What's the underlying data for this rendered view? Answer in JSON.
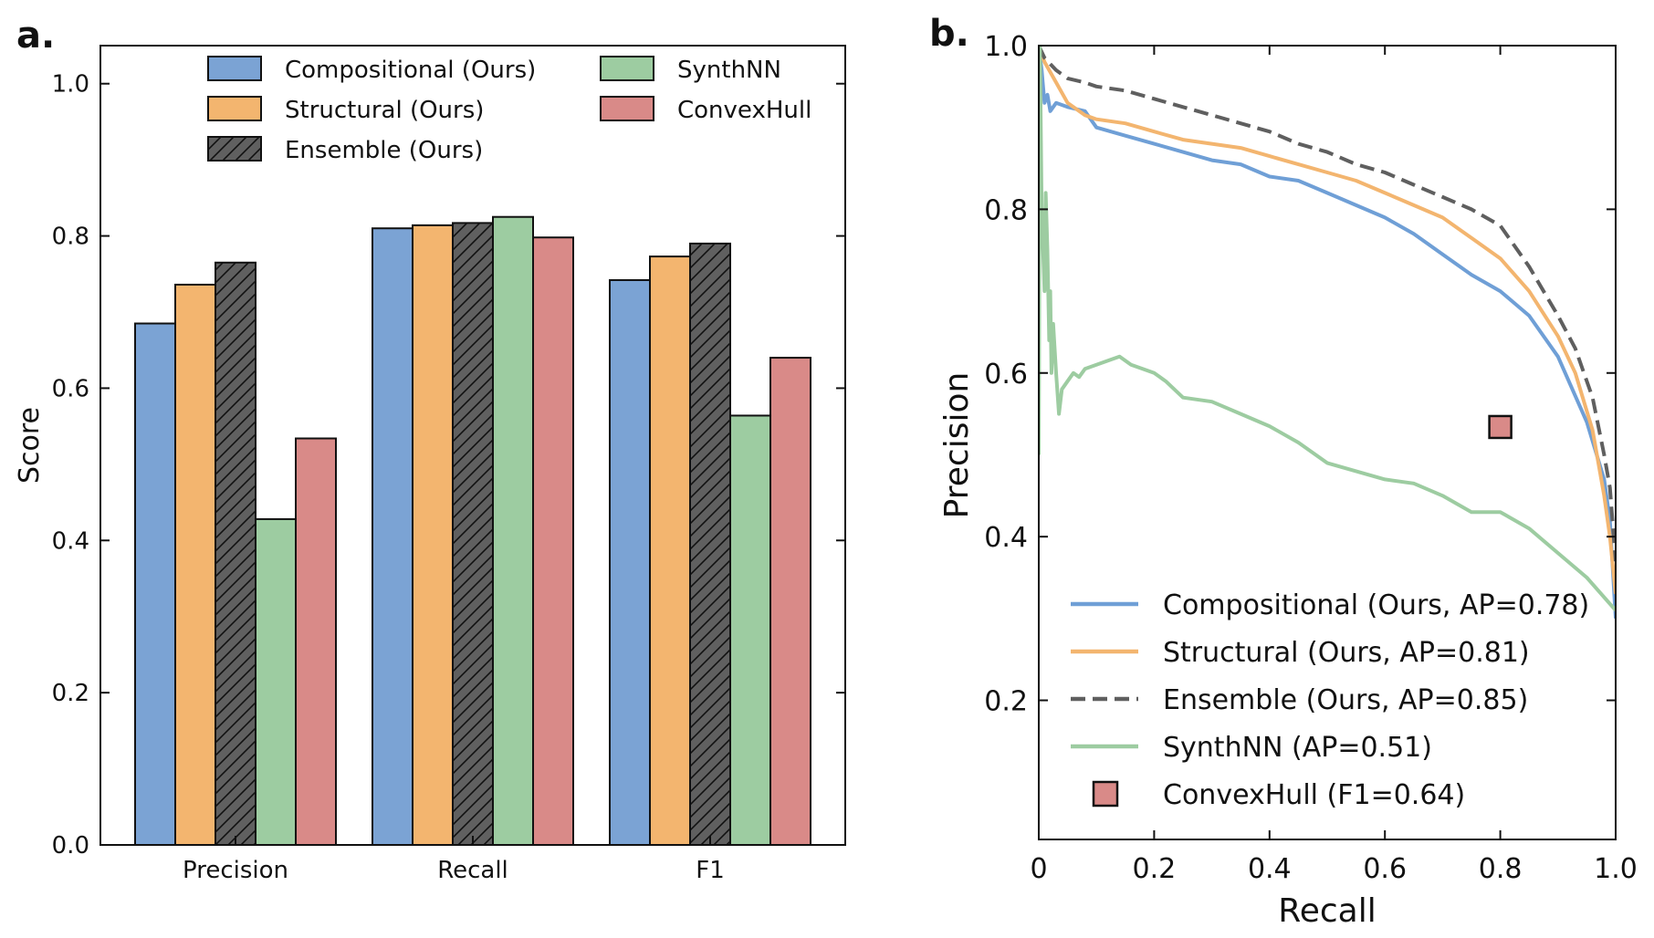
{
  "panel_labels": {
    "a": "a.",
    "b": "b."
  },
  "chart_data": [
    {
      "type": "bar",
      "panel": "a.",
      "categories": [
        "Precision",
        "Recall",
        "F1"
      ],
      "ylabel": "Score",
      "xlabel": "",
      "ylim": [
        0.0,
        1.05
      ],
      "yticks": [
        "0.0",
        "0.2",
        "0.4",
        "0.6",
        "0.8",
        "1.0"
      ],
      "legend_position": "top",
      "series": [
        {
          "name": "Compositional (Ours)",
          "color": "#7ba3d4",
          "hatch": false,
          "values": [
            0.685,
            0.81,
            0.742
          ]
        },
        {
          "name": "Structural (Ours)",
          "color": "#f3b56f",
          "hatch": false,
          "values": [
            0.736,
            0.814,
            0.773
          ]
        },
        {
          "name": "Ensemble (Ours)",
          "color": "#606060",
          "hatch": true,
          "values": [
            0.765,
            0.817,
            0.79
          ]
        },
        {
          "name": "SynthNN",
          "color": "#9dcca1",
          "hatch": false,
          "values": [
            0.428,
            0.825,
            0.564
          ]
        },
        {
          "name": "ConvexHull",
          "color": "#d98a88",
          "hatch": false,
          "values": [
            0.534,
            0.798,
            0.64
          ]
        }
      ]
    },
    {
      "type": "line",
      "panel": "b.",
      "xlabel": "Recall",
      "ylabel": "Precision",
      "xlim": [
        0.0,
        1.0
      ],
      "ylim": [
        0.03,
        1.0
      ],
      "xticks": [
        "0",
        "0.2",
        "0.4",
        "0.6",
        "0.8",
        "1.0"
      ],
      "yticks": [
        "0.2",
        "0.4",
        "0.6",
        "0.8",
        "1.0"
      ],
      "legend_position": "bottom-right",
      "series": [
        {
          "name": "Compositional (Ours, AP=0.78)",
          "color": "#6f9fd6",
          "dash": false,
          "x": [
            0.0,
            0.005,
            0.01,
            0.015,
            0.02,
            0.03,
            0.05,
            0.08,
            0.1,
            0.15,
            0.2,
            0.25,
            0.3,
            0.35,
            0.4,
            0.45,
            0.5,
            0.55,
            0.6,
            0.65,
            0.7,
            0.75,
            0.8,
            0.85,
            0.9,
            0.95,
            0.98,
            0.99,
            1.0
          ],
          "y": [
            1.0,
            0.97,
            0.93,
            0.94,
            0.92,
            0.93,
            0.925,
            0.92,
            0.9,
            0.89,
            0.88,
            0.87,
            0.86,
            0.855,
            0.84,
            0.835,
            0.82,
            0.805,
            0.79,
            0.77,
            0.745,
            0.72,
            0.7,
            0.67,
            0.62,
            0.54,
            0.47,
            0.42,
            0.3
          ]
        },
        {
          "name": "Structural (Ours, AP=0.81)",
          "color": "#f3b56f",
          "dash": false,
          "x": [
            0.0,
            0.01,
            0.03,
            0.05,
            0.08,
            0.1,
            0.15,
            0.2,
            0.25,
            0.3,
            0.35,
            0.4,
            0.45,
            0.5,
            0.55,
            0.6,
            0.65,
            0.7,
            0.75,
            0.8,
            0.85,
            0.9,
            0.93,
            0.96,
            0.98,
            0.99,
            1.0
          ],
          "y": [
            1.0,
            0.98,
            0.955,
            0.93,
            0.915,
            0.91,
            0.905,
            0.895,
            0.885,
            0.88,
            0.875,
            0.865,
            0.855,
            0.845,
            0.835,
            0.82,
            0.805,
            0.79,
            0.765,
            0.74,
            0.7,
            0.645,
            0.6,
            0.53,
            0.45,
            0.4,
            0.33
          ]
        },
        {
          "name": "Ensemble (Ours, AP=0.85)",
          "color": "#5f5f5f",
          "dash": true,
          "x": [
            0.0,
            0.01,
            0.03,
            0.05,
            0.08,
            0.1,
            0.15,
            0.2,
            0.25,
            0.3,
            0.35,
            0.4,
            0.45,
            0.5,
            0.55,
            0.6,
            0.65,
            0.7,
            0.75,
            0.8,
            0.85,
            0.9,
            0.93,
            0.96,
            0.98,
            0.99,
            1.0
          ],
          "y": [
            1.0,
            0.985,
            0.97,
            0.96,
            0.955,
            0.95,
            0.945,
            0.935,
            0.925,
            0.915,
            0.905,
            0.895,
            0.88,
            0.87,
            0.855,
            0.845,
            0.83,
            0.815,
            0.8,
            0.78,
            0.73,
            0.67,
            0.63,
            0.57,
            0.5,
            0.46,
            0.37
          ]
        },
        {
          "name": "SynthNN (AP=0.51)",
          "color": "#9dcca1",
          "dash": false,
          "x": [
            0.0,
            0.002,
            0.005,
            0.01,
            0.012,
            0.015,
            0.018,
            0.02,
            0.022,
            0.025,
            0.03,
            0.035,
            0.04,
            0.05,
            0.06,
            0.07,
            0.08,
            0.1,
            0.12,
            0.14,
            0.16,
            0.18,
            0.2,
            0.22,
            0.25,
            0.3,
            0.35,
            0.4,
            0.45,
            0.5,
            0.55,
            0.6,
            0.65,
            0.7,
            0.75,
            0.8,
            0.85,
            0.9,
            0.95,
            1.0
          ],
          "y": [
            0.5,
            1.0,
            0.8,
            0.7,
            0.82,
            0.75,
            0.64,
            0.7,
            0.6,
            0.66,
            0.6,
            0.55,
            0.58,
            0.59,
            0.6,
            0.595,
            0.605,
            0.61,
            0.615,
            0.62,
            0.61,
            0.605,
            0.6,
            0.59,
            0.57,
            0.565,
            0.55,
            0.535,
            0.515,
            0.49,
            0.48,
            0.47,
            0.465,
            0.45,
            0.43,
            0.43,
            0.41,
            0.38,
            0.35,
            0.31
          ]
        }
      ],
      "markers": [
        {
          "name": "ConvexHull (F1=0.64)",
          "color": "#d98a88",
          "x": 0.8,
          "y": 0.534
        }
      ]
    }
  ]
}
